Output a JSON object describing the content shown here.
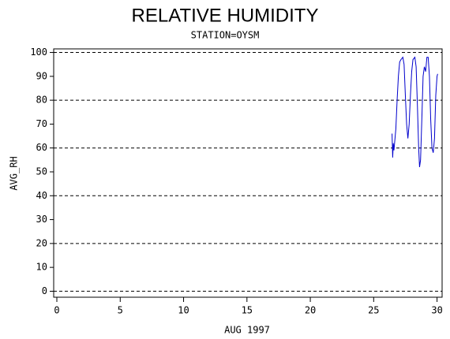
{
  "chart_data": {
    "type": "line",
    "title": "RELATIVE HUMIDITY",
    "subtitle": "STATION=OYSM",
    "x_label": "AUG 1997",
    "y_label": "AVG_RH",
    "xlim": [
      -0.25,
      30.4
    ],
    "ylim": [
      -2.5,
      101.5
    ],
    "xticks": [
      0,
      5,
      10,
      15,
      20,
      25,
      30
    ],
    "yticks": [
      0,
      10,
      20,
      30,
      40,
      50,
      60,
      70,
      80,
      90,
      100
    ],
    "grid_lines": [
      0,
      20,
      40,
      60,
      80,
      100
    ],
    "series": [
      {
        "color": "#0000cc",
        "x": [
          26.45,
          26.5,
          26.55,
          26.6,
          26.65,
          26.75,
          26.85,
          26.95,
          27.05,
          27.15,
          27.3,
          27.4,
          27.5,
          27.6,
          27.7,
          27.8,
          27.9,
          28.0,
          28.1,
          28.25,
          28.35,
          28.45,
          28.55,
          28.62,
          28.7,
          28.8,
          28.9,
          29.0,
          29.1,
          29.2,
          29.3,
          29.4,
          29.5,
          29.6,
          29.7,
          29.8,
          29.9,
          30.0,
          30.05
        ],
        "values": [
          66,
          56,
          62,
          59,
          62,
          68,
          80,
          90,
          96,
          97,
          98,
          95,
          82,
          70,
          64,
          70,
          82,
          92,
          97,
          98,
          94,
          78,
          60,
          52,
          55,
          72,
          90,
          94,
          92,
          98,
          98,
          90,
          72,
          60,
          58,
          64,
          82,
          90,
          91
        ]
      }
    ]
  }
}
